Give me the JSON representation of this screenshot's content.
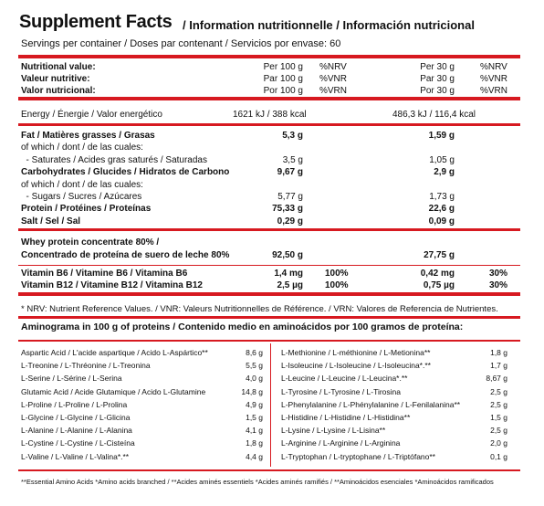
{
  "title": {
    "main": "Supplement Facts",
    "sub": "/ Information nutritionnelle / Información nutricional"
  },
  "servings": "Servings per container / Doses par contenant / Servicios por envase: 60",
  "header_rows": [
    {
      "label": "Nutritional value:",
      "per100": "Per 100 g",
      "pct": "%NRV",
      "per30": "Per 30 g",
      "pct30": "%NRV"
    },
    {
      "label": "Valeur nutritive:",
      "per100": "Par 100 g",
      "pct": "%VNR",
      "per30": "Par 30 g",
      "pct30": "%VNR"
    },
    {
      "label": "Valor nutricional:",
      "per100": "Por 100 g",
      "pct": "%VRN",
      "per30": "Por 30 g",
      "pct30": "%VRN"
    }
  ],
  "energy": {
    "label": "Energy / Énergie / Valor energético",
    "per100": "1621 kJ / 388 kcal",
    "per30": "486,3 kJ / 116,4 kcal"
  },
  "nutrients": [
    {
      "label": "Fat / Matières grasses / Grasas",
      "per100": "5,3 g",
      "per30": "1,59 g",
      "bold": true
    },
    {
      "label": "of which / dont / de las cuales:",
      "per100": "",
      "per30": "",
      "bold": false
    },
    {
      "label": "  - Saturates / Acides gras saturés / Saturadas",
      "per100": "3,5 g",
      "per30": "1,05 g",
      "bold": false
    },
    {
      "label": "Carbohydrates / Glucides / Hidratos de Carbono",
      "per100": "9,67 g",
      "per30": "2,9 g",
      "bold": true
    },
    {
      "label": "of which / dont / de las cuales:",
      "per100": "",
      "per30": "",
      "bold": false
    },
    {
      "label": "  - Sugars / Sucres / Azúcares",
      "per100": "5,77 g",
      "per30": "1,73 g",
      "bold": false
    },
    {
      "label": "Protein / Protéines / Proteínas",
      "per100": "75,33 g",
      "per30": "22,6 g",
      "bold": true
    },
    {
      "label": "Salt / Sel / Sal",
      "per100": "0,29 g",
      "per30": "0,09 g",
      "bold": true
    }
  ],
  "whey": {
    "line1": "Whey protein concentrate 80% /",
    "line2": "Concentrado de proteína de suero de leche 80%",
    "per100": "92,50 g",
    "per30": "27,75 g"
  },
  "vitamins": [
    {
      "label": "Vitamin B6 / Vitamine B6 / Vitamina B6",
      "per100": "1,4 mg",
      "pct": "100%",
      "per30": "0,42 mg",
      "pct30": "30%"
    },
    {
      "label": "Vitamin B12 / Vitamine B12 / Vitamina B12",
      "per100": "2,5 µg",
      "pct": "100%",
      "per30": "0,75 µg",
      "pct30": "30%"
    }
  ],
  "note": "* NRV: Nutrient Reference Values. / VNR: Valeurs Nutritionnelles de Référence. / VRN: Valores de Referencia de Nutrientes.",
  "amino_title": "Aminograma in 100 g of proteins / Contenido medio en aminoácidos por 100 gramos de proteína:",
  "amino_left": [
    {
      "name": "Aspartic Acid / L'acide aspartique / Acido L-Aspártico**",
      "value": "8,6 g"
    },
    {
      "name": "L-Treonine / L-Thréonine / L-Treonina",
      "value": "5,5 g"
    },
    {
      "name": "L-Serine / L-Sérine / L-Serina",
      "value": "4,0 g"
    },
    {
      "name": "Glutamic Acid / Acide Glutamique / Acido L-Glutamine",
      "value": "14,8 g"
    },
    {
      "name": "L-Proline / L-Proline / L-Prolina",
      "value": "4,9 g"
    },
    {
      "name": "L-Glycine / L-Glycine / L-Glicina",
      "value": "1,5 g"
    },
    {
      "name": "L-Alanine / L-Alanine / L-Alanina",
      "value": "4,1 g"
    },
    {
      "name": "L-Cystine / L-Cystine / L-Cisteína",
      "value": "1,8 g"
    },
    {
      "name": "L-Valine / L-Valine / L-Valina*.**",
      "value": "4,4 g"
    }
  ],
  "amino_right": [
    {
      "name": "L-Methionine / L-méthionine / L-Metionina**",
      "value": "1,8 g"
    },
    {
      "name": "L-Isoleucine / L-Isoleucine / L-Isoleucina*.**",
      "value": "1,7 g"
    },
    {
      "name": "L-Leucine / L-Leucine / L-Leucina*.**",
      "value": "8,67 g"
    },
    {
      "name": "L-Tyrosine / L-Tyrosine / L-Tirosina",
      "value": "2,5 g"
    },
    {
      "name": "L-Phenylalanine / L-Phénylalanine / L-Fenilalanina**",
      "value": "2,5 g"
    },
    {
      "name": "L-Histidine / L-Histidine / L-Histidina**",
      "value": "1,5 g"
    },
    {
      "name": "L-Lysine / L-Lysine / L-Lisina**",
      "value": "2,5 g"
    },
    {
      "name": "L-Arginine / L-Arginine / L-Arginina",
      "value": "2,0 g"
    },
    {
      "name": "L-Tryptophan / L-tryptophane / L-Triptófano**",
      "value": "0,1 g"
    }
  ],
  "footnote": "**Essential Amino Acids *Amino acids branched / **Acides aminés essentiels *Acides aminés ramifiés / **Aminoácidos esenciales *Aminoácidos ramificados",
  "colors": {
    "accent": "#d71920"
  }
}
